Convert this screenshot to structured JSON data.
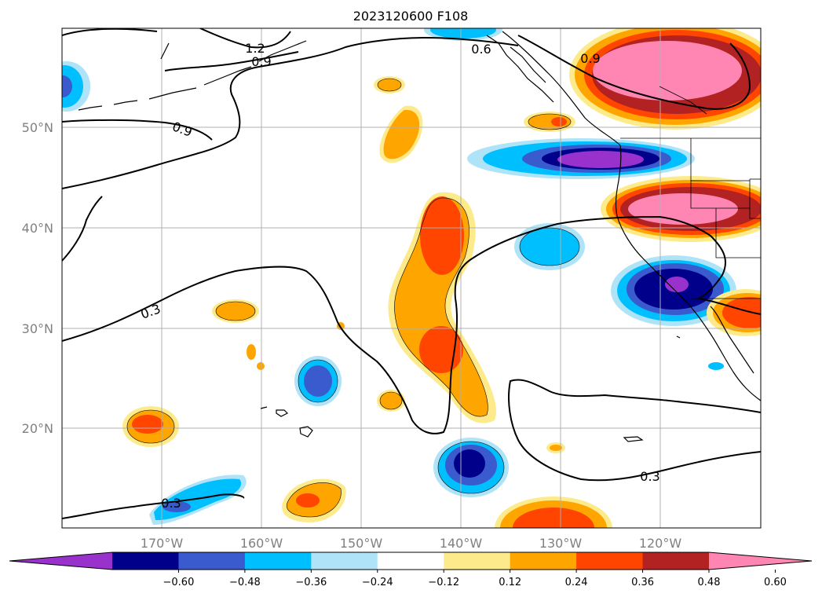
{
  "title": "2023120600 F108",
  "map": {
    "lat_labels": [
      "50°N",
      "40°N",
      "30°N",
      "20°N"
    ],
    "lon_labels": [
      "170°W",
      "160°W",
      "150°W",
      "140°W",
      "130°W",
      "120°W"
    ],
    "contour_labels": [
      "1.2",
      "0.9",
      "0.6",
      "0.9",
      "0.9",
      "0.3",
      "0.3",
      "0.3"
    ],
    "gridlines": true
  },
  "colorbar": {
    "ticks": [
      "−0.60",
      "−0.48",
      "−0.36",
      "−0.24",
      "−0.12",
      "0.12",
      "0.24",
      "0.36",
      "0.48",
      "0.60"
    ],
    "colors": [
      "#9932cc",
      "#00008b",
      "#3a5bcd",
      "#00bfff",
      "#aee3f8",
      "#ffffff",
      "#fdeb8b",
      "#ffa500",
      "#ff4500",
      "#b22222",
      "#ff86b2"
    ]
  }
}
